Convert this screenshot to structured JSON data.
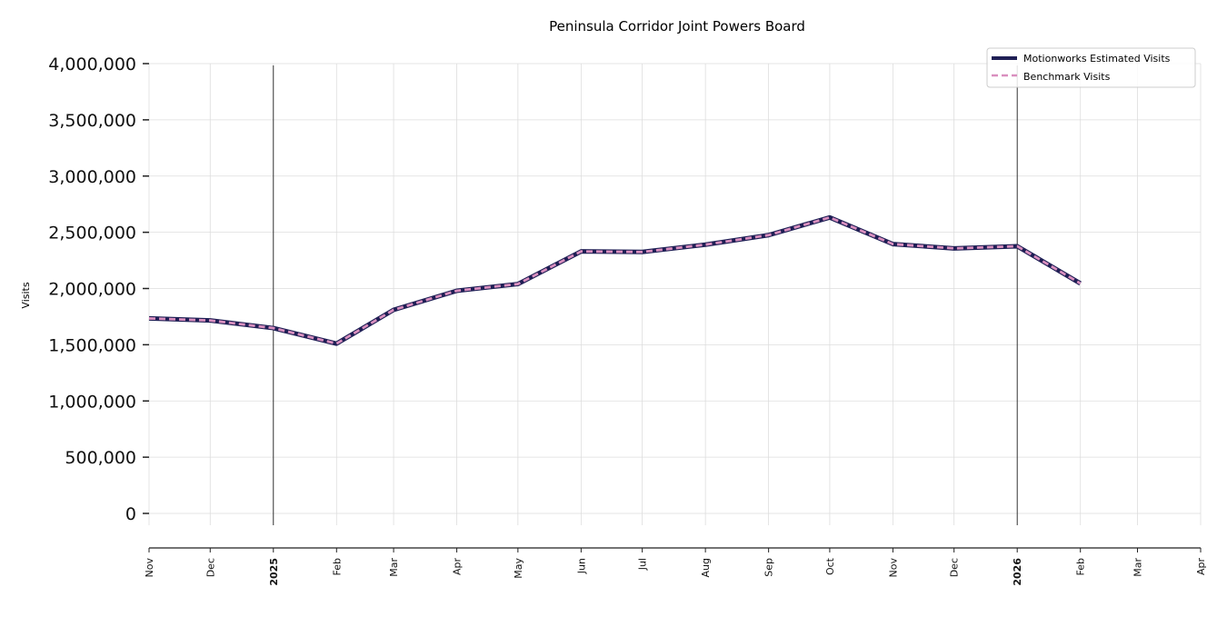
{
  "chart_data": {
    "type": "line",
    "title": "Peninsula Corridor Joint Powers Board",
    "xlabel": "",
    "ylabel": "Visits",
    "ylim": [
      0,
      4000000
    ],
    "xlim": [
      "2024-11-01",
      "2026-04-01"
    ],
    "grid": true,
    "legend_position": "top-right",
    "y_ticks": [
      0,
      500000,
      1000000,
      1500000,
      2000000,
      2500000,
      3000000,
      3500000,
      4000000
    ],
    "y_tick_labels": [
      "0",
      "500,000",
      "1,000,000",
      "1,500,000",
      "2,000,000",
      "2,500,000",
      "3,000,000",
      "3,500,000",
      "4,000,000"
    ],
    "x_ticks": [
      "2024-11-01",
      "2024-12-01",
      "2025-01-01",
      "2025-02-01",
      "2025-03-01",
      "2025-04-01",
      "2025-05-01",
      "2025-06-01",
      "2025-07-01",
      "2025-08-01",
      "2025-09-01",
      "2025-10-01",
      "2025-11-01",
      "2025-12-01",
      "2026-01-01",
      "2026-02-01",
      "2026-03-01",
      "2026-04-01"
    ],
    "x_tick_labels": [
      "Nov",
      "Dec",
      "2025",
      "Feb",
      "Mar",
      "Apr",
      "May",
      "Jun",
      "Jul",
      "Aug",
      "Sep",
      "Oct",
      "Nov",
      "Dec",
      "2026",
      "Feb",
      "Mar",
      "Apr"
    ],
    "year_markers": [
      "2025-01-01",
      "2026-01-01"
    ],
    "x": [
      "2024-11-01",
      "2024-12-01",
      "2025-01-01",
      "2025-02-01",
      "2025-03-01",
      "2025-04-01",
      "2025-05-01",
      "2025-06-01",
      "2025-07-01",
      "2025-08-01",
      "2025-09-01",
      "2025-10-01",
      "2025-11-01",
      "2025-12-01",
      "2026-01-01",
      "2026-02-01"
    ],
    "series": [
      {
        "name": "Motionworks Estimated Visits",
        "color": "#1f1f55",
        "style": "solid",
        "values": [
          1734000,
          1716000,
          1648000,
          1510000,
          1810000,
          1980000,
          2040000,
          2330000,
          2325000,
          2390000,
          2475000,
          2632000,
          2395000,
          2357000,
          2376000,
          2045000
        ]
      },
      {
        "name": "Benchmark Visits",
        "color": "#d98fbf",
        "style": "dashed",
        "values": [
          1734000,
          1716000,
          1648000,
          1510000,
          1810000,
          1980000,
          2040000,
          2330000,
          2325000,
          2390000,
          2475000,
          2632000,
          2395000,
          2357000,
          2376000,
          2045000
        ]
      }
    ]
  }
}
